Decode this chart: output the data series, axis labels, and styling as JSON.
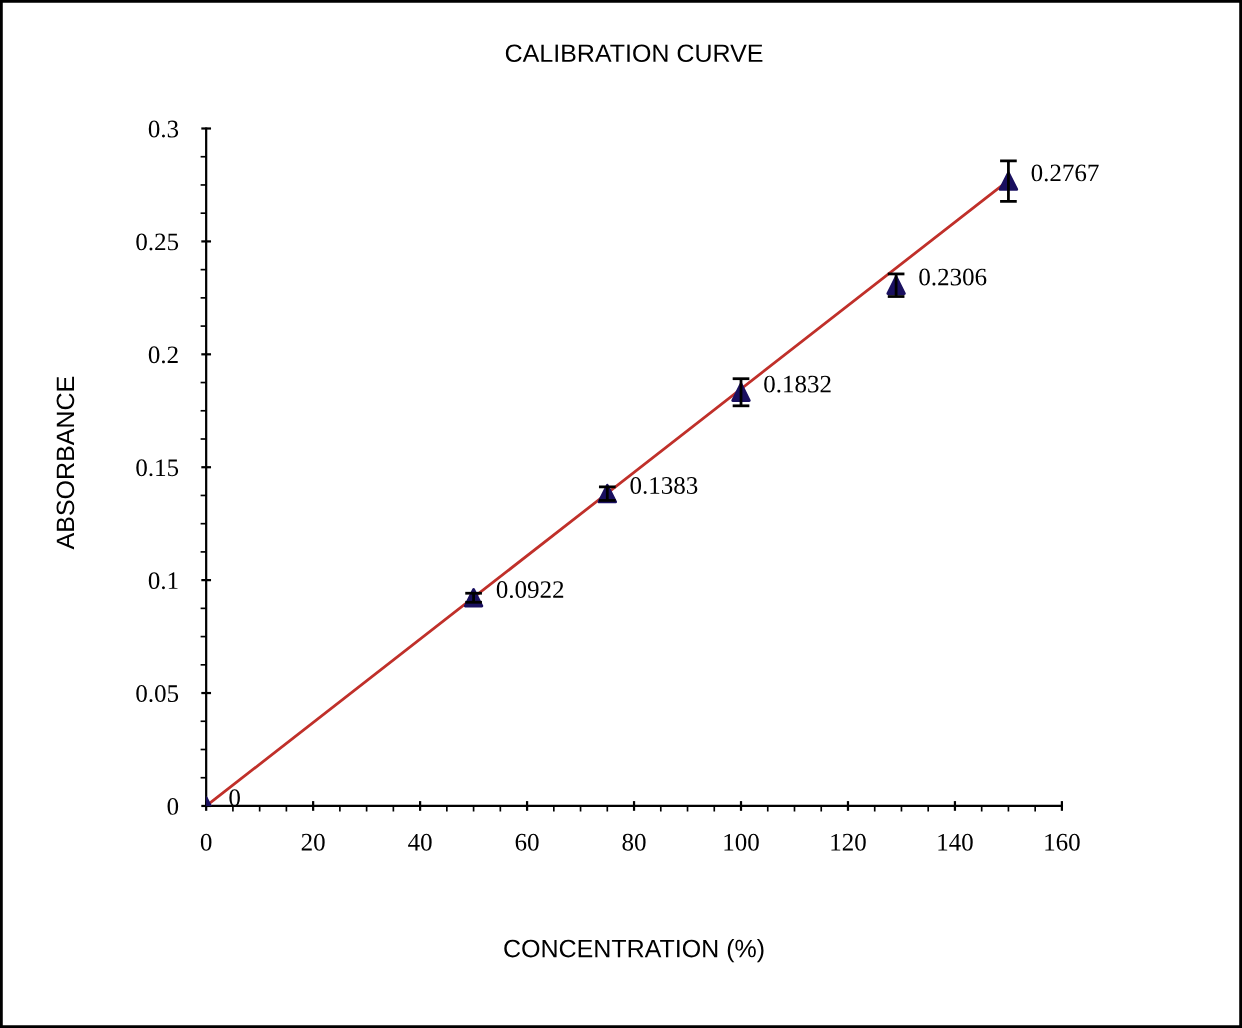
{
  "chart_data": {
    "type": "scatter",
    "title": "CALIBRATION CURVE",
    "xlabel": "CONCENTRATION (%)",
    "ylabel": "ABSORBANCE",
    "xlim": [
      0,
      160
    ],
    "xticks": [
      0,
      20,
      40,
      60,
      80,
      100,
      120,
      140,
      160
    ],
    "ylim": [
      0,
      0.3
    ],
    "yticks": [
      0,
      0.05,
      0.1,
      0.15,
      0.2,
      0.25,
      0.3
    ],
    "grid": false,
    "marker": "triangle",
    "series": [
      {
        "color": "#1a1060",
        "x": [
          0,
          50,
          75,
          100,
          129,
          150
        ],
        "values": [
          0,
          0.0922,
          0.1383,
          0.1832,
          0.2306,
          0.2767
        ],
        "errors": [
          null,
          0.002,
          0.003,
          0.006,
          0.005,
          0.009
        ],
        "value_labels": [
          "0",
          "0.0922",
          "0.1383",
          "0.1832",
          "0.2306",
          "0.2767"
        ]
      },
      {
        "type": "line",
        "color": "#c0302a",
        "marker": "none",
        "x": [
          0,
          150
        ],
        "values": [
          0,
          0.277
        ]
      }
    ]
  }
}
